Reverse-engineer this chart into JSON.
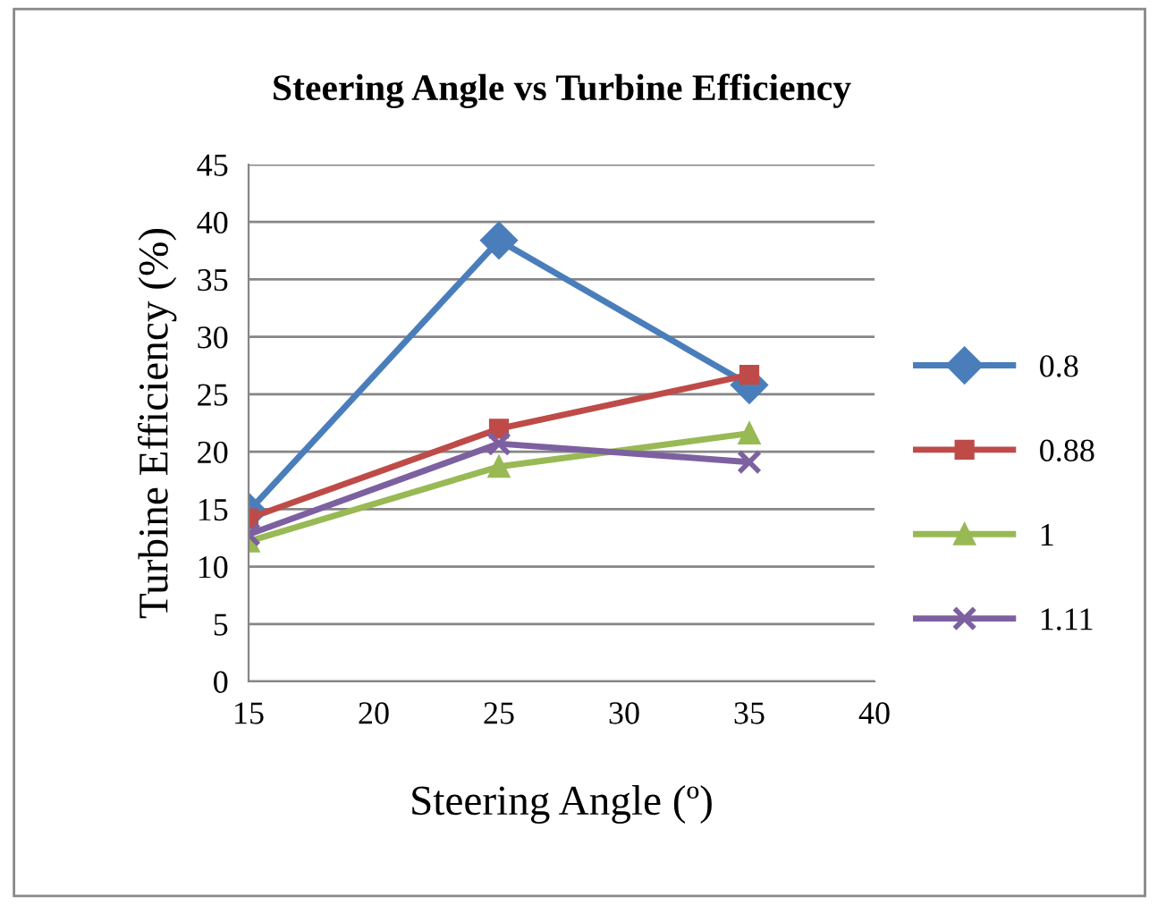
{
  "chart_data": {
    "type": "line",
    "title": "Steering Angle vs Turbine Efficiency",
    "xlabel": "Steering Angle (º)",
    "ylabel": "Turbine Efficiency (%)",
    "x": [
      15,
      25,
      35
    ],
    "series": [
      {
        "name": "0.8",
        "color": "#4a7ebb",
        "marker": "diamond",
        "values": [
          14.8,
          38.4,
          25.8
        ]
      },
      {
        "name": "0.88",
        "color": "#be4b48",
        "marker": "square",
        "values": [
          14.2,
          22.0,
          26.7
        ]
      },
      {
        "name": "1",
        "color": "#98b954",
        "marker": "triangle",
        "values": [
          12.2,
          18.7,
          21.6
        ]
      },
      {
        "name": "1.11",
        "color": "#7d60a0",
        "marker": "cross",
        "values": [
          12.8,
          20.7,
          19.1
        ]
      }
    ],
    "xlim": [
      15,
      40
    ],
    "xticks": [
      15,
      20,
      25,
      30,
      35,
      40
    ],
    "ylim": [
      0,
      45
    ],
    "yticks": [
      0,
      5,
      10,
      15,
      20,
      25,
      30,
      35,
      40,
      45
    ],
    "grid": "y",
    "legend": "right",
    "line_style": "solid"
  }
}
